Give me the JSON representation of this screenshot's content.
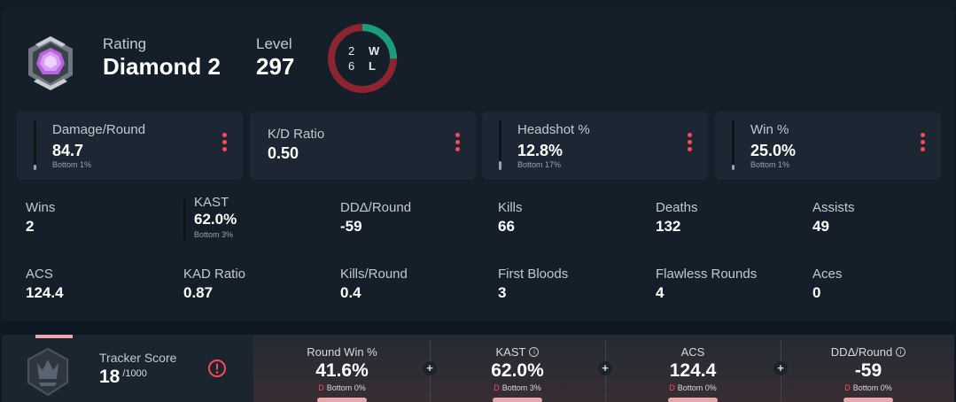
{
  "header": {
    "rating_label": "Rating",
    "rating_value": "Diamond 2",
    "level_label": "Level",
    "level_value": "297",
    "wins": "2",
    "losses": "6",
    "win_label": "W",
    "loss_label": "L",
    "win_fraction": 0.25
  },
  "cards": [
    {
      "label": "Damage/Round",
      "value": "84.7",
      "sub": "Bottom 1%",
      "bar_fill": 0.01
    },
    {
      "label": "K/D Ratio",
      "value": "0.50"
    },
    {
      "label": "Headshot %",
      "value": "12.8%",
      "sub": "Bottom 17%",
      "bar_fill": 0.17
    },
    {
      "label": "Win %",
      "value": "25.0%",
      "sub": "Bottom 1%",
      "bar_fill": 0.01
    }
  ],
  "stats": {
    "wins": {
      "label": "Wins",
      "value": "2"
    },
    "kast": {
      "label": "KAST",
      "value": "62.0%",
      "sub": "Bottom 3%"
    },
    "dda": {
      "label": "DDΔ/Round",
      "value": "-59"
    },
    "kills": {
      "label": "Kills",
      "value": "66"
    },
    "deaths": {
      "label": "Deaths",
      "value": "132"
    },
    "assists": {
      "label": "Assists",
      "value": "49"
    },
    "acs": {
      "label": "ACS",
      "value": "124.4"
    },
    "kad": {
      "label": "KAD Ratio",
      "value": "0.87"
    },
    "kpr": {
      "label": "Kills/Round",
      "value": "0.4"
    },
    "first_bloods": {
      "label": "First Bloods",
      "value": "3"
    },
    "flawless": {
      "label": "Flawless Rounds",
      "value": "4"
    },
    "aces": {
      "label": "Aces",
      "value": "0"
    }
  },
  "tracker": {
    "label": "Tracker Score",
    "value": "18",
    "max": "/1000"
  },
  "bottom_stats": [
    {
      "label": "Round Win %",
      "value": "41.6%",
      "grade": "D",
      "sub": "Bottom 0%"
    },
    {
      "label": "KAST",
      "value": "62.0%",
      "grade": "D",
      "sub": "Bottom 3%",
      "info": "i"
    },
    {
      "label": "ACS",
      "value": "124.4",
      "grade": "D",
      "sub": "Bottom 0%"
    },
    {
      "label": "DDΔ/Round",
      "value": "-59",
      "grade": "D",
      "sub": "Bottom 0%",
      "info": "i"
    }
  ],
  "plus_symbol": "+",
  "colors": {
    "accent": "#ff4655",
    "win": "#1a9d7c",
    "loss": "#8c2530",
    "background": "#0f1923",
    "card": "#1c2733"
  }
}
